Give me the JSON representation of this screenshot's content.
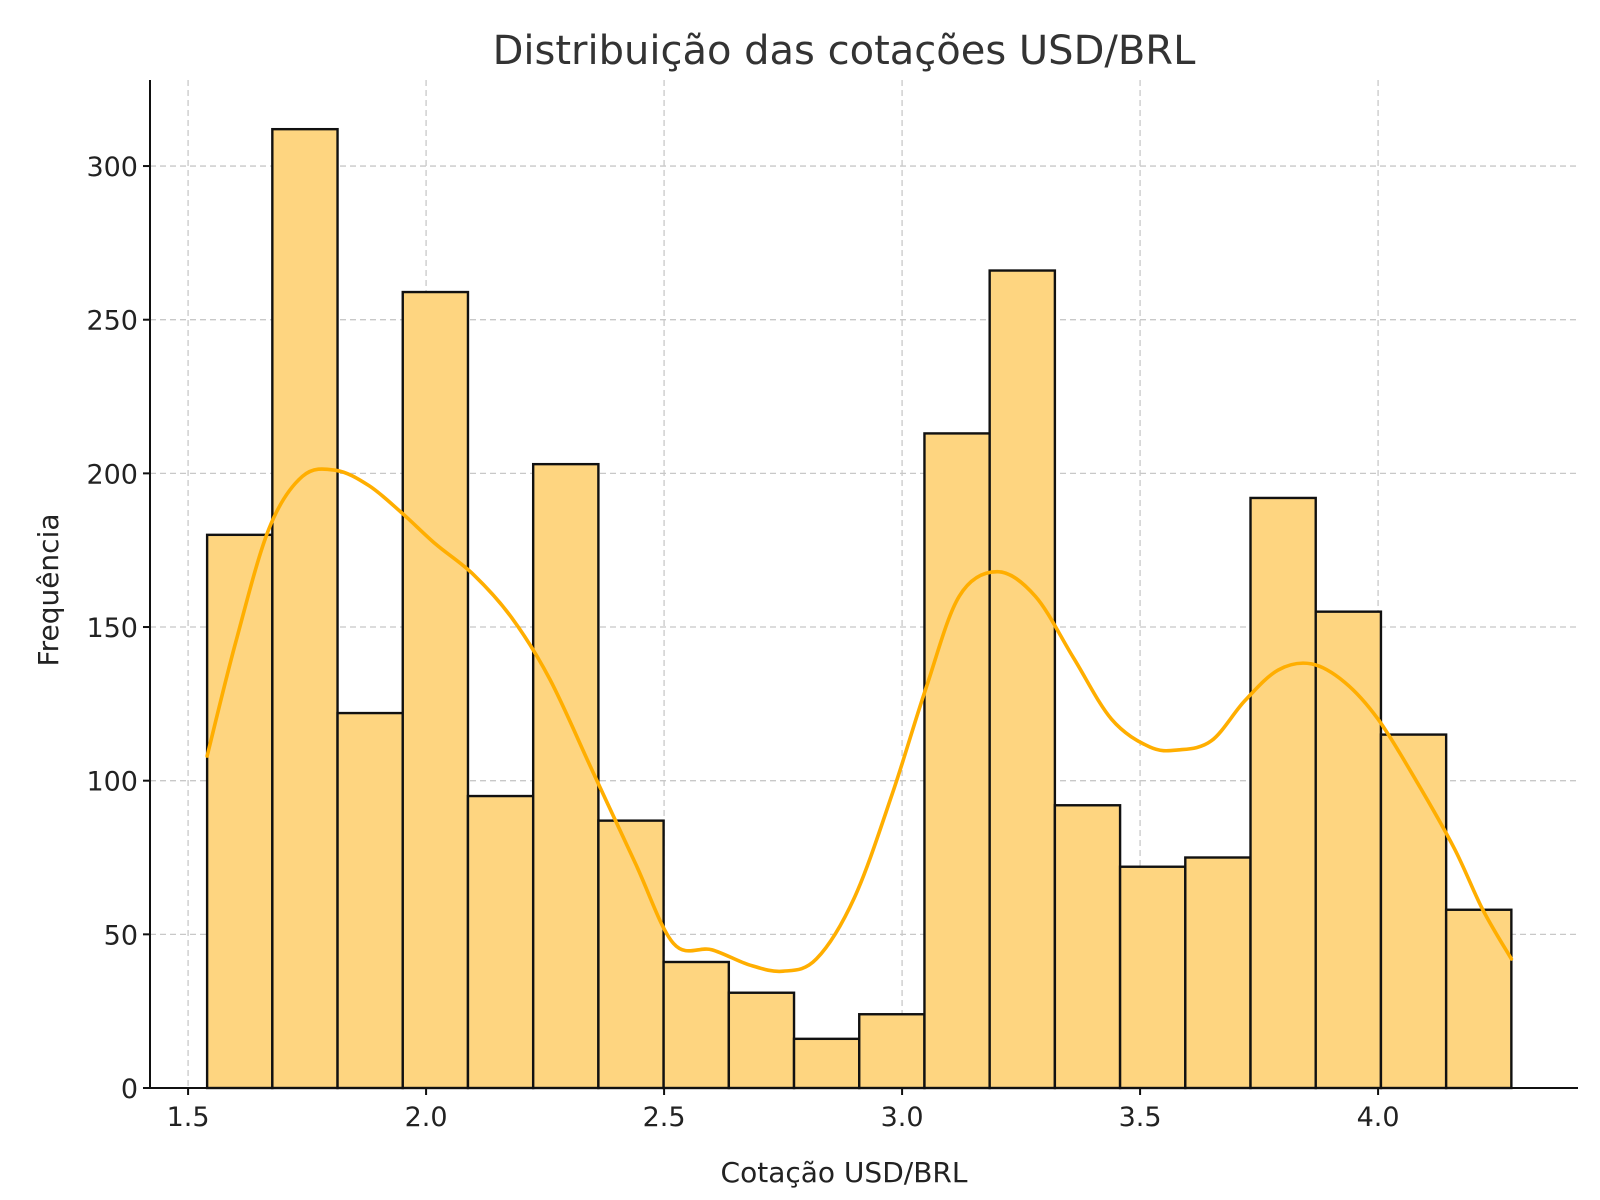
{
  "chart_data": {
    "type": "histogram",
    "title": "Distribuição das cotações USD/BRL",
    "xlabel": "Cotação USD/BRL",
    "ylabel": "Frequência",
    "xlim": [
      1.42,
      4.42
    ],
    "ylim": [
      0,
      328
    ],
    "xticks": [
      1.5,
      2.0,
      2.5,
      3.0,
      3.5,
      4.0
    ],
    "xtick_labels": [
      "1.5",
      "2.0",
      "2.5",
      "3.0",
      "3.5",
      "4.0"
    ],
    "yticks": [
      0,
      50,
      100,
      150,
      200,
      250,
      300
    ],
    "ytick_labels": [
      "0",
      "50",
      "100",
      "150",
      "200",
      "250",
      "300"
    ],
    "grid": true,
    "bin_edges": [
      1.54,
      1.677,
      1.814,
      1.951,
      2.088,
      2.225,
      2.362,
      2.499,
      2.636,
      2.773,
      2.91,
      3.047,
      3.184,
      3.321,
      3.458,
      3.595,
      3.732,
      3.869,
      4.006,
      4.143,
      4.28
    ],
    "counts": [
      180,
      312,
      122,
      259,
      95,
      203,
      87,
      41,
      31,
      16,
      24,
      213,
      266,
      92,
      72,
      75,
      192,
      155,
      115,
      58
    ],
    "bar_color": "#FED580",
    "edge_color": "#111111",
    "kde": {
      "color": "#FFAE00",
      "x": [
        1.54,
        1.6,
        1.67,
        1.74,
        1.81,
        1.88,
        1.95,
        2.02,
        2.1,
        2.18,
        2.26,
        2.35,
        2.44,
        2.52,
        2.6,
        2.68,
        2.75,
        2.82,
        2.9,
        2.98,
        3.05,
        3.12,
        3.2,
        3.28,
        3.36,
        3.44,
        3.52,
        3.58,
        3.65,
        3.72,
        3.79,
        3.86,
        3.93,
        4.0,
        4.08,
        4.16,
        4.22,
        4.28
      ],
      "y": [
        108,
        145,
        182,
        199,
        201,
        196,
        187,
        177,
        167,
        153,
        133,
        103,
        73,
        47,
        45,
        40,
        38,
        42,
        62,
        96,
        130,
        160,
        168,
        160,
        140,
        120,
        111,
        110,
        113,
        126,
        136,
        138,
        132,
        120,
        100,
        78,
        58,
        42
      ]
    }
  }
}
